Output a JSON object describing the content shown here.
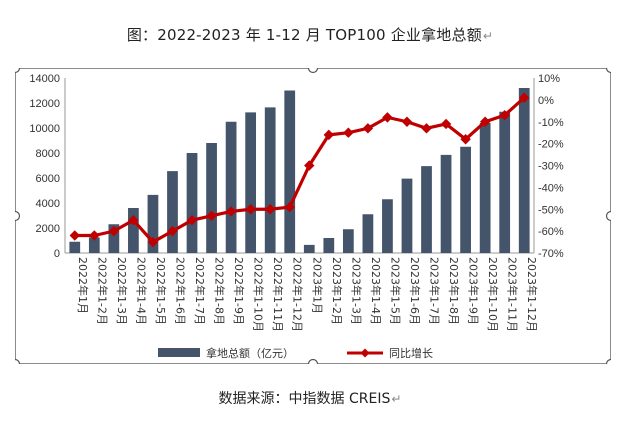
{
  "title": "图：2022-2023 年 1-12 月 TOP100 企业拿地总额",
  "source": "数据来源：中指数据 CREIS",
  "chart_data": {
    "type": "bar",
    "categories": [
      "2022年1月",
      "2022年1-2月",
      "2022年1-3月",
      "2022年1-4月",
      "2022年1-5月",
      "2022年1-6月",
      "2022年1-7月",
      "2022年1-8月",
      "2022年1-9月",
      "2022年1-10月",
      "2022年1-11月",
      "2022年1-12月",
      "2023年1月",
      "2023年1-2月",
      "2023年1-3月",
      "2023年1-4月",
      "2023年1-5月",
      "2023年1-6月",
      "2023年1-7月",
      "2023年1-8月",
      "2023年1-9月",
      "2023年1-10月",
      "2023年1-11月",
      "2023年1-12月"
    ],
    "series": [
      {
        "name": "拿地总额（亿元）",
        "type": "bar",
        "axis": "left",
        "color": "#44546a",
        "values": [
          900,
          1250,
          2300,
          3600,
          4650,
          6550,
          8000,
          8800,
          10500,
          11250,
          11650,
          13000,
          650,
          1200,
          1900,
          3100,
          4300,
          5950,
          6950,
          7850,
          8500,
          10400,
          11300,
          13200
        ]
      },
      {
        "name": "同比增长",
        "type": "line",
        "axis": "right",
        "color": "#c00000",
        "values": [
          -62,
          -62,
          -60,
          -55,
          -65,
          -60,
          -55,
          -53,
          -51,
          -50,
          -50,
          -49,
          -30,
          -16,
          -15,
          -13,
          -8,
          -10,
          -13,
          -11,
          -18,
          -10,
          -7,
          1
        ]
      }
    ],
    "ylim_left": [
      0,
      14000
    ],
    "yticks_left": [
      0,
      2000,
      4000,
      6000,
      8000,
      10000,
      12000,
      14000
    ],
    "ylim_right": [
      -70,
      10
    ],
    "yticks_right": [
      "-70%",
      "-60%",
      "-50%",
      "-40%",
      "-30%",
      "-20%",
      "-10%",
      "0%",
      "10%"
    ],
    "legend_position": "bottom"
  }
}
